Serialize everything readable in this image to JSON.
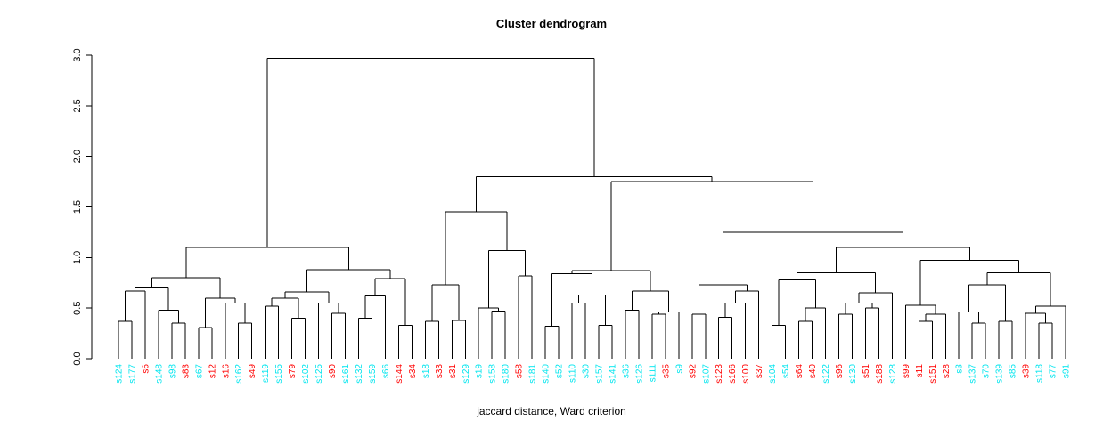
{
  "chart_data": {
    "type": "dendrogram",
    "title": "Cluster dendrogram",
    "xlabel": "jaccard distance, Ward criterion",
    "y_ticks": [
      "0.0",
      "0.5",
      "1.0",
      "1.5",
      "2.0",
      "2.5",
      "3.0"
    ],
    "ylim": [
      0,
      3.0
    ],
    "grid": false,
    "palette": {
      "red": "#FF0000",
      "cyan": "#00E5EE",
      "line": "#000000",
      "axis_text": "#000000"
    },
    "leaves": [
      {
        "label": "s124",
        "color": "cyan"
      },
      {
        "label": "s177",
        "color": "cyan"
      },
      {
        "label": "s6",
        "color": "red"
      },
      {
        "label": "s148",
        "color": "cyan"
      },
      {
        "label": "s98",
        "color": "cyan"
      },
      {
        "label": "s83",
        "color": "red"
      },
      {
        "label": "s67",
        "color": "cyan"
      },
      {
        "label": "s12",
        "color": "red"
      },
      {
        "label": "s16",
        "color": "red"
      },
      {
        "label": "s162",
        "color": "cyan"
      },
      {
        "label": "s49",
        "color": "red"
      },
      {
        "label": "s119",
        "color": "cyan"
      },
      {
        "label": "s155",
        "color": "cyan"
      },
      {
        "label": "s79",
        "color": "red"
      },
      {
        "label": "s102",
        "color": "cyan"
      },
      {
        "label": "s125",
        "color": "cyan"
      },
      {
        "label": "s90",
        "color": "red"
      },
      {
        "label": "s161",
        "color": "cyan"
      },
      {
        "label": "s132",
        "color": "cyan"
      },
      {
        "label": "s159",
        "color": "cyan"
      },
      {
        "label": "s66",
        "color": "cyan"
      },
      {
        "label": "s144",
        "color": "red"
      },
      {
        "label": "s34",
        "color": "red"
      },
      {
        "label": "s18",
        "color": "cyan"
      },
      {
        "label": "s33",
        "color": "red"
      },
      {
        "label": "s31",
        "color": "red"
      },
      {
        "label": "s129",
        "color": "cyan"
      },
      {
        "label": "s19",
        "color": "cyan"
      },
      {
        "label": "s158",
        "color": "cyan"
      },
      {
        "label": "s180",
        "color": "cyan"
      },
      {
        "label": "s58",
        "color": "red"
      },
      {
        "label": "s181",
        "color": "cyan"
      },
      {
        "label": "s140",
        "color": "cyan"
      },
      {
        "label": "s52",
        "color": "cyan"
      },
      {
        "label": "s110",
        "color": "cyan"
      },
      {
        "label": "s30",
        "color": "cyan"
      },
      {
        "label": "s157",
        "color": "cyan"
      },
      {
        "label": "s141",
        "color": "cyan"
      },
      {
        "label": "s36",
        "color": "cyan"
      },
      {
        "label": "s126",
        "color": "cyan"
      },
      {
        "label": "s111",
        "color": "cyan"
      },
      {
        "label": "s35",
        "color": "red"
      },
      {
        "label": "s9",
        "color": "cyan"
      },
      {
        "label": "s92",
        "color": "red"
      },
      {
        "label": "s107",
        "color": "cyan"
      },
      {
        "label": "s123",
        "color": "red"
      },
      {
        "label": "s166",
        "color": "red"
      },
      {
        "label": "s100",
        "color": "red"
      },
      {
        "label": "s37",
        "color": "red"
      },
      {
        "label": "s104",
        "color": "cyan"
      },
      {
        "label": "s54",
        "color": "cyan"
      },
      {
        "label": "s64",
        "color": "red"
      },
      {
        "label": "s40",
        "color": "red"
      },
      {
        "label": "s122",
        "color": "cyan"
      },
      {
        "label": "s96",
        "color": "red"
      },
      {
        "label": "s130",
        "color": "cyan"
      },
      {
        "label": "s51",
        "color": "red"
      },
      {
        "label": "s188",
        "color": "red"
      },
      {
        "label": "s128",
        "color": "cyan"
      },
      {
        "label": "s99",
        "color": "red"
      },
      {
        "label": "s11",
        "color": "red"
      },
      {
        "label": "s151",
        "color": "red"
      },
      {
        "label": "s28",
        "color": "red"
      },
      {
        "label": "s3",
        "color": "cyan"
      },
      {
        "label": "s137",
        "color": "cyan"
      },
      {
        "label": "s70",
        "color": "cyan"
      },
      {
        "label": "s139",
        "color": "cyan"
      },
      {
        "label": "s85",
        "color": "cyan"
      },
      {
        "label": "s39",
        "color": "red"
      },
      {
        "label": "s118",
        "color": "cyan"
      },
      {
        "label": "s77",
        "color": "cyan"
      },
      {
        "label": "s91",
        "color": "cyan"
      }
    ],
    "tree": {
      "h": 2.97,
      "c": [
        {
          "h": 1.1,
          "c": [
            {
              "h": 0.8,
              "c": [
                {
                  "h": 0.7,
                  "c": [
                    {
                      "h": 0.67,
                      "c": [
                        {
                          "h": 0.37,
                          "c": [
                            0,
                            1
                          ]
                        },
                        2
                      ]
                    },
                    {
                      "h": 0.48,
                      "c": [
                        3,
                        {
                          "h": 0.35,
                          "c": [
                            4,
                            5
                          ]
                        }
                      ]
                    }
                  ]
                },
                {
                  "h": 0.6,
                  "c": [
                    {
                      "h": 0.31,
                      "c": [
                        6,
                        7
                      ]
                    },
                    {
                      "h": 0.55,
                      "c": [
                        8,
                        {
                          "h": 0.35,
                          "c": [
                            9,
                            10
                          ]
                        }
                      ]
                    }
                  ]
                }
              ]
            },
            {
              "h": 0.88,
              "c": [
                {
                  "h": 0.66,
                  "c": [
                    {
                      "h": 0.6,
                      "c": [
                        {
                          "h": 0.52,
                          "c": [
                            11,
                            12
                          ]
                        },
                        {
                          "h": 0.4,
                          "c": [
                            13,
                            14
                          ]
                        }
                      ]
                    },
                    {
                      "h": 0.55,
                      "c": [
                        15,
                        {
                          "h": 0.45,
                          "c": [
                            16,
                            17
                          ]
                        }
                      ]
                    }
                  ]
                },
                {
                  "h": 0.79,
                  "c": [
                    {
                      "h": 0.62,
                      "c": [
                        {
                          "h": 0.4,
                          "c": [
                            18,
                            19
                          ]
                        },
                        20
                      ]
                    },
                    {
                      "h": 0.33,
                      "c": [
                        21,
                        22
                      ]
                    }
                  ]
                }
              ]
            }
          ]
        },
        {
          "h": 1.8,
          "c": [
            {
              "h": 1.45,
              "c": [
                {
                  "h": 0.73,
                  "c": [
                    {
                      "h": 0.37,
                      "c": [
                        23,
                        24
                      ]
                    },
                    {
                      "h": 0.38,
                      "c": [
                        25,
                        26
                      ]
                    }
                  ]
                },
                {
                  "h": 1.07,
                  "c": [
                    {
                      "h": 0.5,
                      "c": [
                        27,
                        {
                          "h": 0.47,
                          "c": [
                            28,
                            29
                          ]
                        }
                      ]
                    },
                    {
                      "h": 0.82,
                      "c": [
                        30,
                        31
                      ]
                    }
                  ]
                }
              ]
            },
            {
              "h": 1.75,
              "c": [
                {
                  "h": 0.87,
                  "c": [
                    {
                      "h": 0.84,
                      "c": [
                        {
                          "h": 0.32,
                          "c": [
                            32,
                            33
                          ]
                        },
                        {
                          "h": 0.63,
                          "c": [
                            {
                              "h": 0.55,
                              "c": [
                                34,
                                35
                              ]
                            },
                            {
                              "h": 0.33,
                              "c": [
                                36,
                                37
                              ]
                            }
                          ]
                        }
                      ]
                    },
                    {
                      "h": 0.67,
                      "c": [
                        {
                          "h": 0.48,
                          "c": [
                            38,
                            39
                          ]
                        },
                        {
                          "h": 0.46,
                          "c": [
                            {
                              "h": 0.44,
                              "c": [
                                40,
                                41
                              ]
                            },
                            42
                          ]
                        }
                      ]
                    }
                  ]
                },
                {
                  "h": 1.25,
                  "c": [
                    {
                      "h": 0.73,
                      "c": [
                        {
                          "h": 0.44,
                          "c": [
                            43,
                            44
                          ]
                        },
                        {
                          "h": 0.67,
                          "c": [
                            {
                              "h": 0.55,
                              "c": [
                                {
                                  "h": 0.41,
                                  "c": [
                                    45,
                                    46
                                  ]
                                },
                                47
                              ]
                            },
                            48
                          ]
                        }
                      ]
                    },
                    {
                      "h": 1.1,
                      "c": [
                        {
                          "h": 0.85,
                          "c": [
                            {
                              "h": 0.78,
                              "c": [
                                {
                                  "h": 0.33,
                                  "c": [
                                    49,
                                    50
                                  ]
                                },
                                {
                                  "h": 0.5,
                                  "c": [
                                    {
                                      "h": 0.37,
                                      "c": [
                                        51,
                                        52
                                      ]
                                    },
                                    53
                                  ]
                                }
                              ]
                            },
                            {
                              "h": 0.65,
                              "c": [
                                {
                                  "h": 0.55,
                                  "c": [
                                    {
                                      "h": 0.44,
                                      "c": [
                                        54,
                                        55
                                      ]
                                    },
                                    {
                                      "h": 0.5,
                                      "c": [
                                        56,
                                        57
                                      ]
                                    }
                                  ]
                                },
                                58
                              ]
                            }
                          ]
                        },
                        {
                          "h": 0.97,
                          "c": [
                            {
                              "h": 0.53,
                              "c": [
                                59,
                                {
                                  "h": 0.44,
                                  "c": [
                                    {
                                      "h": 0.37,
                                      "c": [
                                        60,
                                        61
                                      ]
                                    },
                                    62
                                  ]
                                }
                              ]
                            },
                            {
                              "h": 0.85,
                              "c": [
                                {
                                  "h": 0.73,
                                  "c": [
                                    {
                                      "h": 0.46,
                                      "c": [
                                        63,
                                        {
                                          "h": 0.35,
                                          "c": [
                                            64,
                                            65
                                          ]
                                        }
                                      ]
                                    },
                                    {
                                      "h": 0.37,
                                      "c": [
                                        66,
                                        67
                                      ]
                                    }
                                  ]
                                },
                                {
                                  "h": 0.52,
                                  "c": [
                                    {
                                      "h": 0.45,
                                      "c": [
                                        68,
                                        {
                                          "h": 0.35,
                                          "c": [
                                            69,
                                            70
                                          ]
                                        }
                                      ]
                                    },
                                    71
                                  ]
                                }
                              ]
                            }
                          ]
                        }
                      ]
                    }
                  ]
                }
              ]
            }
          ]
        }
      ]
    }
  }
}
